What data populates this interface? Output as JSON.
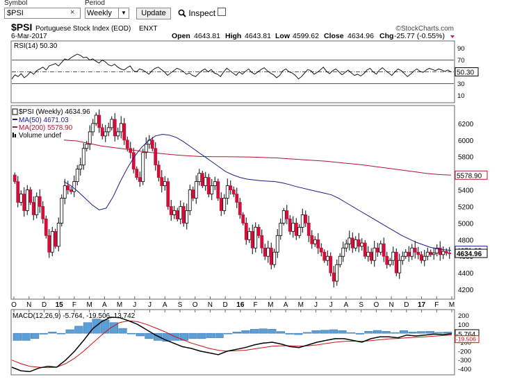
{
  "toolbar": {
    "symbol_label": "Symbol",
    "symbol_value": "$PSI",
    "clear_glyph": "×",
    "period_label": "Period",
    "period_value": "Weekly",
    "update_label": "Update",
    "inspect_label": "Inspect",
    "inspect_checked": false
  },
  "header": {
    "ticker": "$PSI",
    "name": "Portuguese Stock Index (EOD)",
    "exchange": "ENXT",
    "date": "6-Mar-2017",
    "open_label": "Open",
    "open": "4643.81",
    "high_label": "High",
    "high": "4643.81",
    "low_label": "Low",
    "low": "4599.62",
    "close_label": "Close",
    "close": "4634.96",
    "chg_label": "Chg",
    "chg": "-25.77 (-0.55%)",
    "watermark": "©StockCharts.com"
  },
  "chart_data": [
    {
      "type": "line",
      "title": "RSI(14) 50.30",
      "ylim": [
        0,
        100
      ],
      "yticks": [
        10,
        30,
        50,
        70,
        90
      ],
      "reference_lines": [
        30,
        50,
        70
      ],
      "last_value_label": "50.30",
      "series": [
        {
          "name": "RSI(14)",
          "color": "#000000",
          "values": [
            38,
            45,
            42,
            47,
            40,
            44,
            50,
            46,
            52,
            55,
            58,
            53,
            60,
            62,
            64,
            60,
            66,
            72,
            70,
            74,
            77,
            80,
            78,
            74,
            75,
            70,
            72,
            68,
            65,
            70,
            67,
            62,
            60,
            63,
            58,
            55,
            53,
            57,
            60,
            52,
            50,
            55,
            53,
            50,
            46,
            52,
            56,
            58,
            54,
            50,
            44,
            48,
            52,
            56,
            54,
            51,
            46,
            48,
            44,
            42,
            47,
            52,
            55,
            50,
            54,
            48,
            46,
            42,
            50,
            56,
            52,
            48,
            44,
            50,
            46,
            51,
            55,
            49,
            46,
            50,
            54,
            57,
            52,
            48,
            45,
            40,
            44,
            52,
            55,
            50,
            48,
            44,
            38,
            42,
            48,
            54,
            52,
            46,
            49,
            53,
            58,
            51,
            47,
            52,
            55,
            50,
            45,
            49,
            53,
            48,
            44,
            46,
            43,
            47,
            53,
            56,
            50,
            46,
            53,
            57,
            52,
            48,
            44,
            50,
            55,
            52,
            47,
            42,
            46,
            51,
            55,
            51,
            49,
            53,
            56,
            54,
            52,
            55,
            53,
            51,
            53,
            50
          ]
        }
      ]
    },
    {
      "type": "candlestick",
      "title": "$PSI (Weekly) 4634.96",
      "ylim": [
        4100,
        6400
      ],
      "yticks": [
        4200,
        4400,
        4600,
        4800,
        5000,
        5200,
        5400,
        5600,
        5800,
        6000,
        6200
      ],
      "x_ticks": [
        "O",
        "N",
        "D",
        "15",
        "F",
        "M",
        "A",
        "M",
        "J",
        "J",
        "A",
        "S",
        "O",
        "N",
        "D",
        "16",
        "F",
        "M",
        "A",
        "M",
        "J",
        "J",
        "A",
        "S",
        "O",
        "N",
        "D",
        "17",
        "F",
        "M"
      ],
      "legend": [
        {
          "label": "$PSI (Weekly) 4634.96",
          "color": "#000000"
        },
        {
          "label": "MA(50) 4671.03",
          "color": "#1a1a8c"
        },
        {
          "label": "MA(200) 5578.90",
          "color": "#b0142e"
        },
        {
          "label": "Volume undef",
          "color": "#000000"
        }
      ],
      "close_label": "4634.96",
      "ma50_label": "4671.03",
      "ma200_label": "5578.90",
      "closes": [
        5500,
        5250,
        5350,
        5150,
        5400,
        5250,
        5100,
        5320,
        5200,
        5050,
        4850,
        4650,
        4900,
        4720,
        5000,
        5300,
        5450,
        5400,
        5380,
        5500,
        5650,
        5700,
        5900,
        5950,
        6100,
        6200,
        6300,
        6150,
        6050,
        6100,
        6150,
        6250,
        6050,
        6100,
        6200,
        6000,
        5900,
        5850,
        5650,
        5550,
        5500,
        5850,
        5950,
        6000,
        5900,
        5700,
        5550,
        5450,
        5500,
        5200,
        5100,
        5150,
        5050,
        5200,
        5000,
        5150,
        5400,
        5300,
        5500,
        5600,
        5450,
        5550,
        5350,
        5450,
        5500,
        5300,
        5150,
        5300,
        5450,
        5400,
        5350,
        5250,
        5100,
        5000,
        4800,
        4900,
        4700,
        4950,
        4850,
        4700,
        4600,
        4700,
        4500,
        4650,
        4850,
        5000,
        5150,
        5050,
        4900,
        5000,
        4850,
        4950,
        5100,
        5000,
        4850,
        4750,
        4800,
        4700,
        4650,
        4550,
        4600,
        4400,
        4300,
        4500,
        4600,
        4700,
        4750,
        4820,
        4700,
        4800,
        4720,
        4760,
        4600,
        4650,
        4550,
        4700,
        4650,
        4750,
        4600,
        4500,
        4550,
        4650,
        4400,
        4550,
        4600,
        4650,
        4600,
        4700,
        4650,
        4620,
        4550,
        4600,
        4650,
        4620,
        4640,
        4700,
        4620,
        4660,
        4640,
        4635
      ],
      "ma50": [
        5500,
        5450,
        5380,
        5300,
        5220,
        5160,
        5180,
        5320,
        5500,
        5660,
        5800,
        5910,
        5990,
        6050,
        6070,
        6060,
        6030,
        5980,
        5920,
        5860,
        5800,
        5740,
        5680,
        5620,
        5580,
        5550,
        5530,
        5520,
        5510,
        5505,
        5500,
        5485,
        5465,
        5440,
        5420,
        5400,
        5380,
        5360,
        5340,
        5300,
        5250,
        5200,
        5150,
        5100,
        5050,
        5000,
        4950,
        4900,
        4850,
        4810,
        4770,
        4740,
        4710,
        4690,
        4680,
        4672
      ],
      "ma200": [
        6000,
        5990,
        5960,
        5930,
        5910,
        5890,
        5870,
        5850,
        5835,
        5820,
        5810,
        5802,
        5800,
        5800,
        5798,
        5795,
        5790,
        5785,
        5775,
        5765,
        5755,
        5745,
        5730,
        5715,
        5700,
        5680,
        5660,
        5640,
        5620,
        5600,
        5585,
        5578
      ]
    },
    {
      "type": "line",
      "title": "MACD(12,26,9) -5.764, -19.506, 13.742",
      "ylim": [
        -450,
        250
      ],
      "yticks": [
        -400,
        -300,
        -200,
        -100,
        0,
        100,
        200
      ],
      "last_macd_label": "-5.764",
      "last_signal_label": "-19.506",
      "series": [
        {
          "name": "MACD",
          "color": "#000000",
          "values": [
            -380,
            -420,
            -430,
            -390,
            -370,
            -380,
            -300,
            -200,
            -80,
            50,
            130,
            180,
            175,
            140,
            100,
            40,
            -20,
            -70,
            -110,
            -150,
            -170,
            -200,
            -220,
            -240,
            -200,
            -180,
            -160,
            -130,
            -110,
            -100,
            -120,
            -150,
            -160,
            -130,
            -100,
            -80,
            -60,
            -60,
            -80,
            -100,
            -60,
            -40,
            -40,
            -50,
            -20,
            -30,
            -20,
            -10,
            -15,
            -6
          ]
        },
        {
          "name": "Signal",
          "color": "#cc1111",
          "values": [
            -300,
            -340,
            -370,
            -380,
            -385,
            -380,
            -340,
            -280,
            -200,
            -110,
            -20,
            60,
            120,
            140,
            130,
            100,
            60,
            20,
            -30,
            -70,
            -110,
            -140,
            -170,
            -190,
            -200,
            -195,
            -190,
            -175,
            -160,
            -145,
            -140,
            -140,
            -145,
            -140,
            -130,
            -115,
            -100,
            -90,
            -88,
            -90,
            -82,
            -72,
            -62,
            -58,
            -50,
            -45,
            -40,
            -32,
            -25,
            -19.5
          ]
        },
        {
          "name": "Histogram",
          "color": "#5c9fd6",
          "values": [
            -80,
            -80,
            -60,
            -10,
            15,
            0,
            40,
            80,
            120,
            160,
            150,
            120,
            55,
            0,
            -30,
            -60,
            -80,
            -90,
            -80,
            -80,
            -60,
            -60,
            -50,
            -50,
            0,
            15,
            30,
            45,
            50,
            45,
            20,
            -10,
            -15,
            10,
            30,
            35,
            40,
            30,
            8,
            -10,
            22,
            32,
            22,
            8,
            30,
            15,
            20,
            22,
            10,
            13.742
          ]
        }
      ]
    }
  ]
}
